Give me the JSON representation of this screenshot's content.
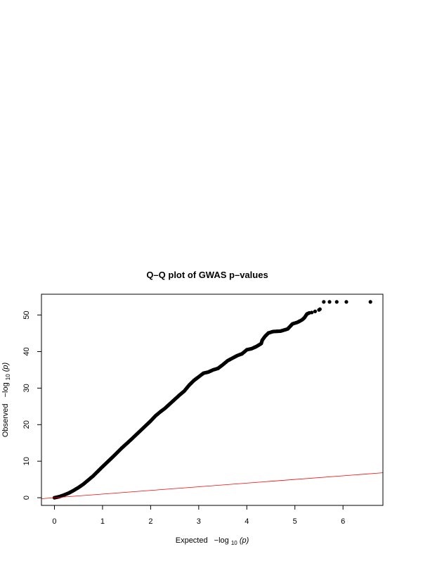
{
  "chart_data": {
    "type": "scatter",
    "title": "Q–Q plot of GWAS p–values",
    "xlabel": {
      "prefix": "Expected",
      "func": "−log",
      "sub": "10",
      "arg": "(p)"
    },
    "ylabel": {
      "prefix": "Observed",
      "func": "−log",
      "sub": "10",
      "arg": "(p)"
    },
    "xlim": [
      -0.27,
      6.83
    ],
    "ylim": [
      -2.1,
      55.7
    ],
    "x_ticks": [
      0,
      1,
      2,
      3,
      4,
      5,
      6
    ],
    "y_ticks": [
      0,
      10,
      20,
      30,
      40,
      50
    ],
    "grid": false,
    "legend": "none",
    "point_color": "#000000",
    "reference_line": {
      "color": "#ff0000",
      "slope": 1,
      "intercept": 0
    },
    "trend_points": [
      [
        0.0,
        0.0
      ],
      [
        0.1,
        0.3
      ],
      [
        0.2,
        0.75
      ],
      [
        0.3,
        1.3
      ],
      [
        0.4,
        2.0
      ],
      [
        0.5,
        2.8
      ],
      [
        0.6,
        3.7
      ],
      [
        0.7,
        4.8
      ],
      [
        0.8,
        5.9
      ],
      [
        0.9,
        7.2
      ],
      [
        1.0,
        8.5
      ],
      [
        1.2,
        11.0
      ],
      [
        1.4,
        13.6
      ],
      [
        1.6,
        16.0
      ],
      [
        1.8,
        18.5
      ],
      [
        2.0,
        21.0
      ],
      [
        2.1,
        22.4
      ],
      [
        2.2,
        23.5
      ],
      [
        2.3,
        24.5
      ],
      [
        2.4,
        25.7
      ],
      [
        2.5,
        26.9
      ],
      [
        2.6,
        28.1
      ],
      [
        2.7,
        29.2
      ],
      [
        2.8,
        30.8
      ],
      [
        2.9,
        32.1
      ],
      [
        3.0,
        33.1
      ],
      [
        3.1,
        34.1
      ],
      [
        3.2,
        34.4
      ],
      [
        3.3,
        35.0
      ],
      [
        3.4,
        35.4
      ],
      [
        3.5,
        36.4
      ],
      [
        3.6,
        37.5
      ],
      [
        3.7,
        38.2
      ],
      [
        3.8,
        38.9
      ],
      [
        3.9,
        39.4
      ],
      [
        4.0,
        40.5
      ],
      [
        4.1,
        40.8
      ],
      [
        4.2,
        41.4
      ],
      [
        4.3,
        42.2
      ],
      [
        4.32,
        43.1
      ],
      [
        4.38,
        44.2
      ],
      [
        4.45,
        45.1
      ],
      [
        4.55,
        45.5
      ],
      [
        4.7,
        45.6
      ],
      [
        4.85,
        46.2
      ],
      [
        4.9,
        46.9
      ],
      [
        4.95,
        47.6
      ],
      [
        5.05,
        48.0
      ],
      [
        5.15,
        48.7
      ],
      [
        5.2,
        49.3
      ],
      [
        5.25,
        50.3
      ],
      [
        5.3,
        50.6
      ]
    ],
    "tail_points": [
      [
        5.35,
        50.7
      ],
      [
        5.42,
        51.0
      ],
      [
        5.5,
        51.4
      ],
      [
        5.52,
        51.6
      ],
      [
        5.6,
        53.6
      ],
      [
        5.72,
        53.6
      ],
      [
        5.87,
        53.6
      ],
      [
        6.07,
        53.6
      ],
      [
        6.57,
        53.6
      ]
    ]
  }
}
